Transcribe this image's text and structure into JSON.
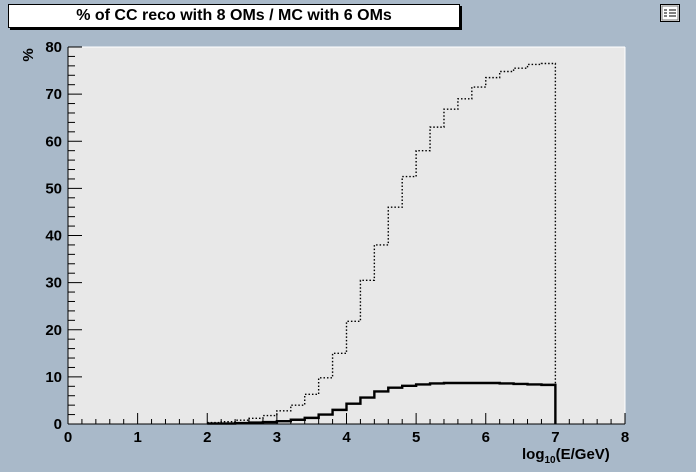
{
  "chart_data": {
    "type": "line",
    "title": "% of CC reco  with 8 OMs / MC with 6 OMs",
    "xlabel_base": "log",
    "xlabel_sub": "10",
    "xlabel_rest": "(E/GeV)",
    "ylabel": "%",
    "xlim": [
      0,
      8
    ],
    "ylim": [
      0,
      80
    ],
    "x_ticks": [
      "0",
      "1",
      "2",
      "3",
      "4",
      "5",
      "6",
      "7",
      "8"
    ],
    "y_ticks": [
      "0",
      "10",
      "20",
      "30",
      "40",
      "50",
      "60",
      "70",
      "80"
    ],
    "bin_width": 0.2,
    "series": [
      {
        "style": "dotted",
        "bins_start": 2.0,
        "values": [
          0.3,
          0.5,
          0.8,
          1.2,
          1.8,
          2.8,
          4.0,
          6.3,
          9.8,
          15.0,
          21.8,
          30.5,
          38.0,
          46.0,
          52.5,
          58.0,
          63.0,
          66.8,
          69.0,
          71.5,
          73.5,
          74.8,
          75.5,
          76.3,
          76.5
        ]
      },
      {
        "style": "solid",
        "bins_start": 2.0,
        "values": [
          0.1,
          0.1,
          0.2,
          0.3,
          0.4,
          0.6,
          0.9,
          1.3,
          2.0,
          3.0,
          4.3,
          5.6,
          6.9,
          7.7,
          8.1,
          8.4,
          8.6,
          8.7,
          8.7,
          8.7,
          8.7,
          8.6,
          8.5,
          8.4,
          8.3
        ]
      }
    ],
    "grid": false,
    "colors": {
      "page_bg": "#a9b9c9",
      "plot_bg": "#e8e8e8",
      "line": "#000000"
    }
  },
  "legend_icon": "legend-icon"
}
